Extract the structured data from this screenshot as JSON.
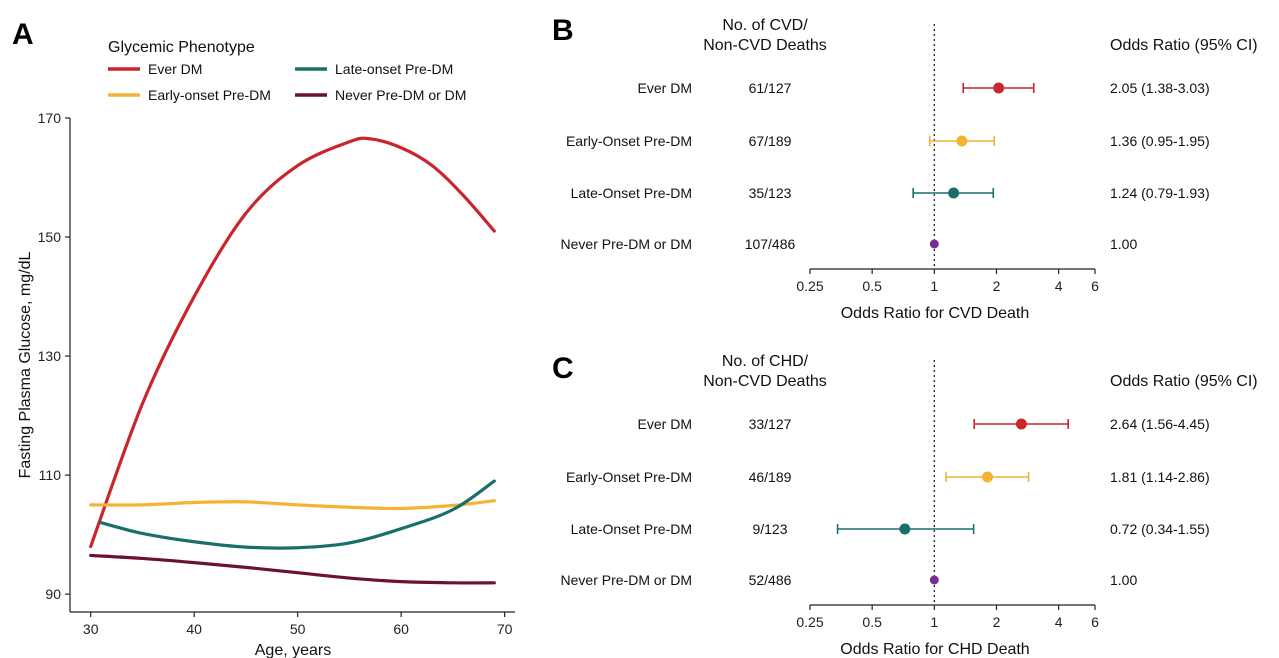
{
  "colors": {
    "ever_dm": "#c8262b",
    "early_onset": "#f5b335",
    "late_onset": "#1b6f6a",
    "never": "#6b1234",
    "never_dot": "#7b2d8e"
  },
  "panel_a": {
    "label": "A",
    "legend_title": "Glycemic Phenotype",
    "chart_data": {
      "type": "line",
      "xlabel": "Age, years",
      "ylabel": "Fasting Plasma Glucose, mg/dL",
      "xlim": [
        28,
        71
      ],
      "ylim": [
        87,
        170
      ],
      "xticks": [
        "30",
        "40",
        "50",
        "60",
        "70"
      ],
      "yticks": [
        "90",
        "110",
        "130",
        "150",
        "170"
      ],
      "series": [
        {
          "name": "Ever DM",
          "color_key": "ever_dm",
          "x": [
            30,
            35,
            40,
            45,
            50,
            55,
            57,
            60,
            63,
            66,
            69
          ],
          "y": [
            98,
            122,
            140,
            154,
            162,
            166,
            166.5,
            165,
            162,
            157,
            151
          ]
        },
        {
          "name": "Early-onset Pre-DM",
          "color_key": "early_onset",
          "x": [
            30,
            35,
            40,
            45,
            50,
            55,
            60,
            65,
            69
          ],
          "y": [
            105,
            105,
            105.4,
            105.5,
            105,
            104.6,
            104.4,
            104.9,
            105.7
          ]
        },
        {
          "name": "Late-onset Pre-DM",
          "color_key": "late_onset",
          "x": [
            31,
            35,
            40,
            45,
            50,
            55,
            60,
            65,
            69
          ],
          "y": [
            102,
            100.2,
            98.8,
            97.9,
            97.8,
            98.6,
            101,
            104.2,
            109
          ]
        },
        {
          "name": "Never Pre-DM or DM",
          "color_key": "never",
          "x": [
            30,
            35,
            40,
            45,
            50,
            55,
            60,
            65,
            69
          ],
          "y": [
            96.5,
            96,
            95.3,
            94.5,
            93.6,
            92.7,
            92.1,
            91.9,
            91.9
          ]
        }
      ]
    }
  },
  "panel_b": {
    "label": "B",
    "header_deaths": [
      "No. of CVD/",
      "Non-CVD Deaths"
    ],
    "header_or": "Odds Ratio (95% CI)",
    "chart_data": {
      "type": "scatter",
      "xlabel": "Odds Ratio for CVD Death",
      "xscale": "log",
      "xlim": [
        0.25,
        6
      ],
      "xticks": [
        "0.25",
        "0.5",
        "1",
        "2",
        "4",
        "6"
      ],
      "reference_line": 1,
      "rows": [
        {
          "label": "Ever DM",
          "deaths": "61/127",
          "or": 2.05,
          "lo": 1.38,
          "hi": 3.03,
          "ci_text": "2.05 (1.38-3.03)",
          "color_key": "ever_dm"
        },
        {
          "label": "Early-Onset Pre-DM",
          "deaths": "67/189",
          "or": 1.36,
          "lo": 0.95,
          "hi": 1.95,
          "ci_text": "1.36 (0.95-1.95)",
          "color_key": "early_onset"
        },
        {
          "label": "Late-Onset Pre-DM",
          "deaths": "35/123",
          "or": 1.24,
          "lo": 0.79,
          "hi": 1.93,
          "ci_text": "1.24 (0.79-1.93)",
          "color_key": "late_onset"
        },
        {
          "label": "Never Pre-DM or DM",
          "deaths": "107/486",
          "or": 1.0,
          "lo": 1.0,
          "hi": 1.0,
          "ci_text": "1.00",
          "color_key": "never_dot"
        }
      ]
    }
  },
  "panel_c": {
    "label": "C",
    "header_deaths": [
      "No. of CHD/",
      "Non-CVD Deaths"
    ],
    "header_or": "Odds Ratio (95% CI)",
    "chart_data": {
      "type": "scatter",
      "xlabel": "Odds Ratio for CHD Death",
      "xscale": "log",
      "xlim": [
        0.25,
        6
      ],
      "xticks": [
        "0.25",
        "0.5",
        "1",
        "2",
        "4",
        "6"
      ],
      "reference_line": 1,
      "rows": [
        {
          "label": "Ever DM",
          "deaths": "33/127",
          "or": 2.64,
          "lo": 1.56,
          "hi": 4.45,
          "ci_text": "2.64 (1.56-4.45)",
          "color_key": "ever_dm"
        },
        {
          "label": "Early-Onset Pre-DM",
          "deaths": "46/189",
          "or": 1.81,
          "lo": 1.14,
          "hi": 2.86,
          "ci_text": "1.81 (1.14-2.86)",
          "color_key": "early_onset"
        },
        {
          "label": "Late-Onset Pre-DM",
          "deaths": "9/123",
          "or": 0.72,
          "lo": 0.34,
          "hi": 1.55,
          "ci_text": "0.72 (0.34-1.55)",
          "color_key": "late_onset"
        },
        {
          "label": "Never Pre-DM or DM",
          "deaths": "52/486",
          "or": 1.0,
          "lo": 1.0,
          "hi": 1.0,
          "ci_text": "1.00",
          "color_key": "never_dot"
        }
      ]
    }
  }
}
